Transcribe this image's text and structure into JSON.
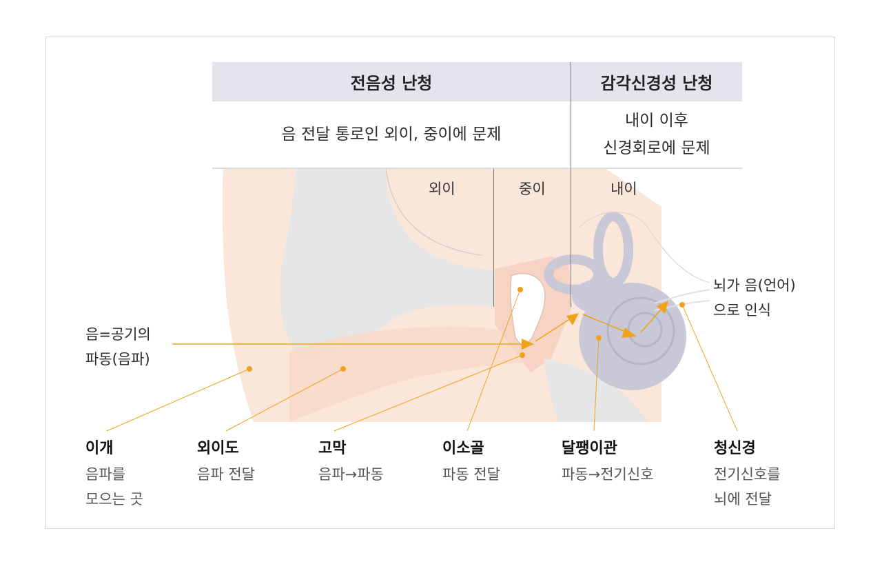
{
  "header": {
    "conductive": "전음성 난청",
    "sensorineural": "감각신경성 난청"
  },
  "description": {
    "conductive": "음 전달 통로인 외이, 중이에 문제",
    "sensorineural_line1": "내이 이후",
    "sensorineural_line2": "신경회로에 문제"
  },
  "regions": {
    "outer": "외이",
    "middle": "중이",
    "inner": "내이"
  },
  "sound_label": {
    "line1": "음=공기의",
    "line2": "파동(음파)"
  },
  "brain_label": {
    "line1": "뇌가 음(언어)",
    "line2": "으로 인식"
  },
  "parts": [
    {
      "name": "이개",
      "desc1": "음파를",
      "desc2": "모으는 곳"
    },
    {
      "name": "외이도",
      "desc1": "음파 전달",
      "desc2": ""
    },
    {
      "name": "고막",
      "desc1": "음파→파동",
      "desc2": ""
    },
    {
      "name": "이소골",
      "desc1": "파동 전달",
      "desc2": ""
    },
    {
      "name": "달팽이관",
      "desc1": "파동→전기신호",
      "desc2": ""
    },
    {
      "name": "청신경",
      "desc1": "전기신호를",
      "desc2": "뇌에 전달"
    }
  ],
  "colors": {
    "accent": "#f0a21a",
    "header_bg": "#e4e4ec",
    "skin": "#fbe6da",
    "inner_ear": "#c9c8d6"
  }
}
